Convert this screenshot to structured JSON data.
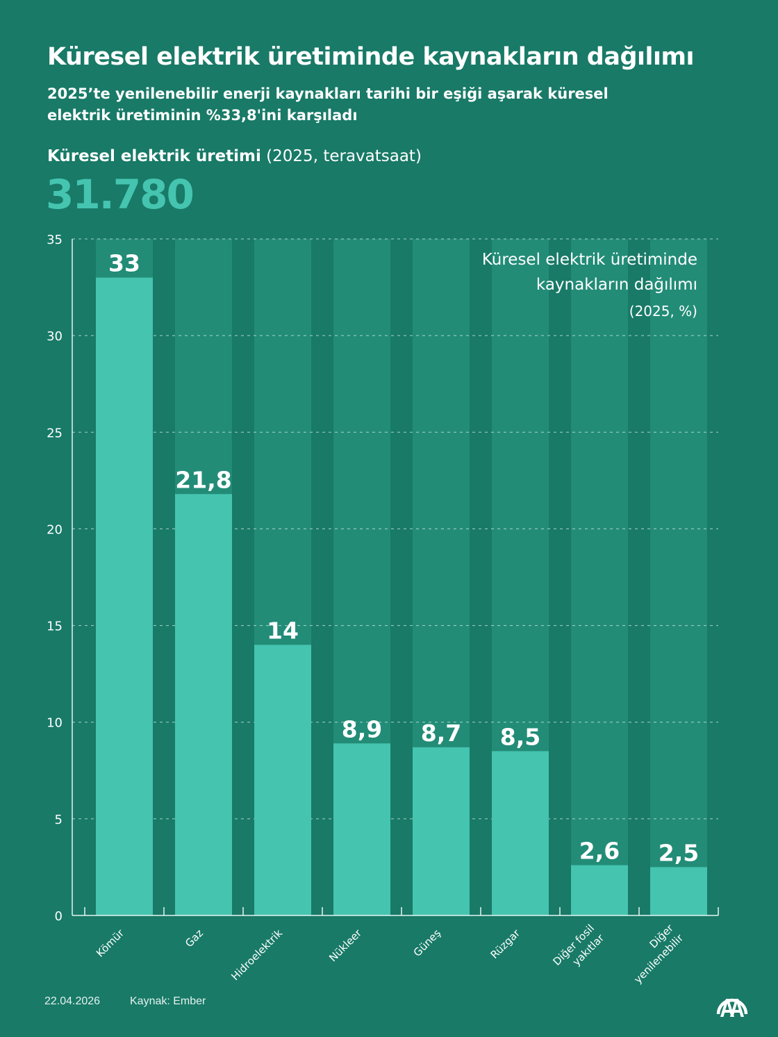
{
  "header": {
    "title": "Küresel elektrik üretiminde kaynakların dağılımı",
    "subtitle": "2025’te yenilenebilir enerji kaynakları tarihi bir eşiği aşarak küresel elektrik üretiminin %33,8'ini karşıladı"
  },
  "metric": {
    "label_strong": "Küresel elektrik üretimi",
    "label_rest": " (2025, teravatsaat)",
    "value": "31.780"
  },
  "colors": {
    "background": "#187a67",
    "column_background": "#228c77",
    "bar": "#45c4b0",
    "text": "#ffffff"
  },
  "chart_data": {
    "type": "bar",
    "title": "Küresel elektrik üretiminde",
    "title_line2": "kaynakların dağılımı",
    "subtitle": "(2025, %)",
    "xlabel": "",
    "ylabel": "",
    "ylim": [
      0,
      35
    ],
    "yticks": [
      0,
      5,
      10,
      15,
      20,
      25,
      30,
      35
    ],
    "grid": true,
    "categories": [
      [
        "Kömür"
      ],
      [
        "Gaz"
      ],
      [
        "Hidroelektrik"
      ],
      [
        "Nükleer"
      ],
      [
        "Güneş"
      ],
      [
        "Rüzgar"
      ],
      [
        "Diğer fosil",
        "yakıtlar"
      ],
      [
        "Diğer",
        "yenilenebilir"
      ]
    ],
    "values": [
      33,
      21.8,
      14,
      8.9,
      8.7,
      8.5,
      2.6,
      2.5
    ],
    "value_labels": [
      "33",
      "21,8",
      "14",
      "8,9",
      "8,7",
      "8,5",
      "2,6",
      "2,5"
    ]
  },
  "footer": {
    "date": "22.04.2026",
    "source": "Kaynak: Ember"
  },
  "logo": {
    "name": "aa-logo-icon",
    "text": "AA"
  }
}
